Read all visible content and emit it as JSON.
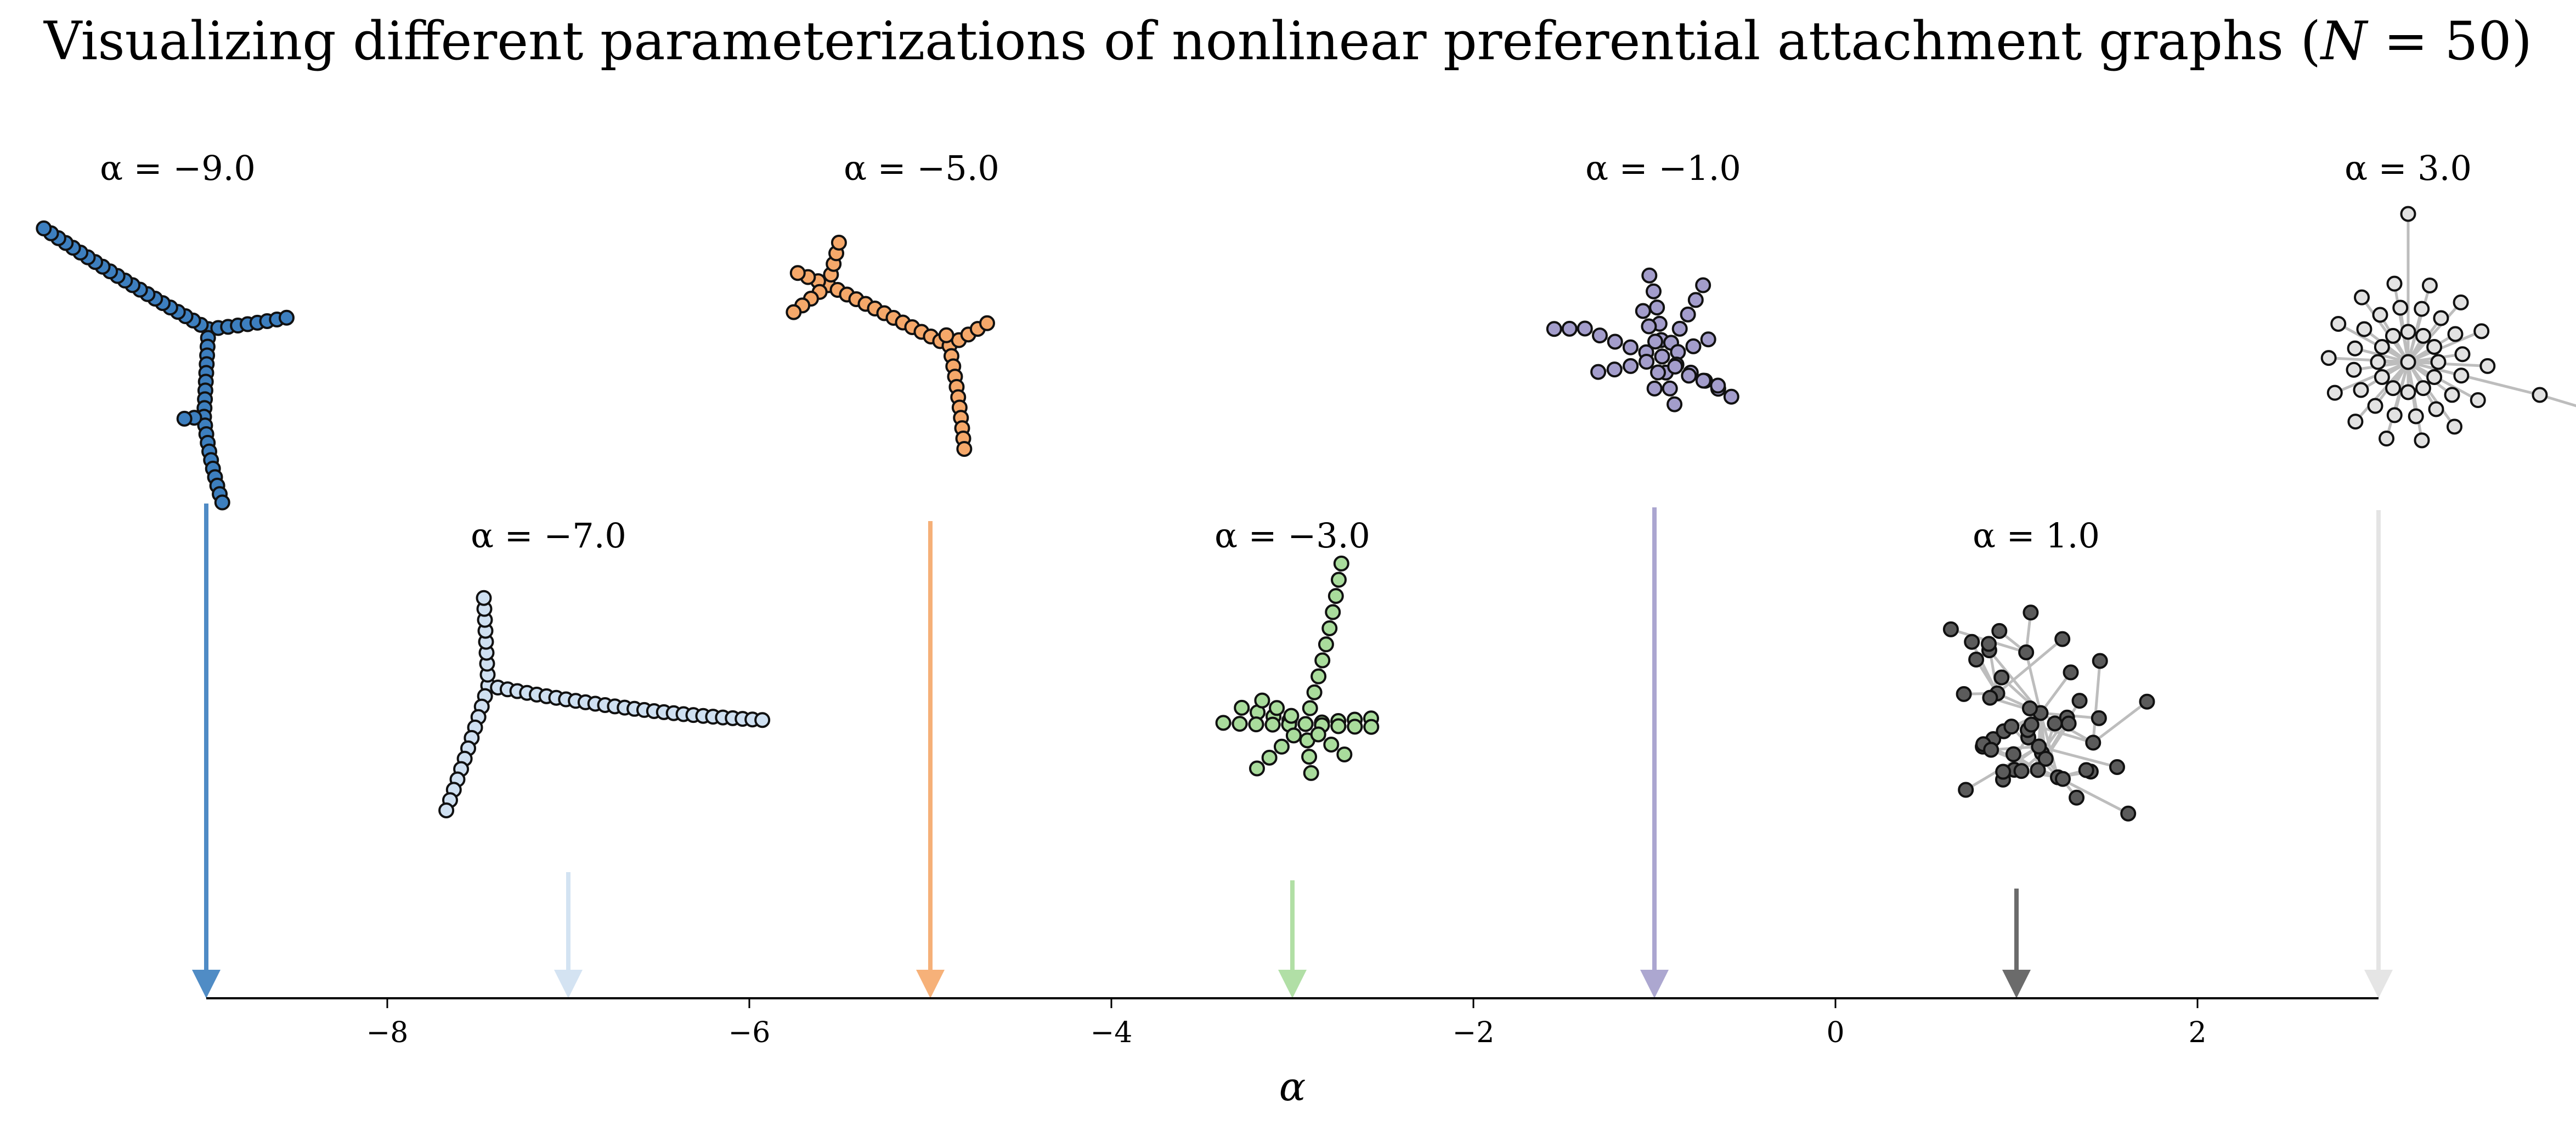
{
  "title": "Visualizing different parameterizations of nonlinear preferential attachment graphs (N = 50)",
  "title_prefix": "Visualizing different parameterizations of nonlinear preferential attachment graphs (",
  "title_var": "N",
  "title_suffix": " = 50)",
  "chart_data": {
    "type": "diagram",
    "title": "Visualizing different parameterizations of nonlinear preferential attachment graphs (N = 50)",
    "xlabel": "α",
    "xlim": [
      -9.0,
      3.0
    ],
    "ticks": [
      -8,
      -6,
      -4,
      -2,
      0,
      2
    ],
    "tick_labels": [
      "−8",
      "−6",
      "−4",
      "−2",
      "0",
      "2"
    ],
    "panels": [
      {
        "alpha": -9.0,
        "label": "α = −9.0",
        "color": "#3d7fbf",
        "structure": "three long chains",
        "row": "top"
      },
      {
        "alpha": -7.0,
        "label": "α = −7.0",
        "color": "#cfe0f1",
        "structure": "three long chains",
        "row": "bottom"
      },
      {
        "alpha": -5.0,
        "label": "α = −5.0",
        "color": "#f5a86a",
        "structure": "few long chains",
        "row": "top"
      },
      {
        "alpha": -3.0,
        "label": "α = −3.0",
        "color": "#a9dc9c",
        "structure": "many medium branches",
        "row": "bottom"
      },
      {
        "alpha": -1.0,
        "label": "α = −1.0",
        "color": "#a39dcb",
        "structure": "random tree",
        "row": "top"
      },
      {
        "alpha": 1.0,
        "label": "α = 1.0",
        "color": "#5b5b5b",
        "structure": "hub-heavy tree",
        "row": "bottom"
      },
      {
        "alpha": 3.0,
        "label": "α = 3.0",
        "color": "#e2e2e2",
        "structure": "star with single hub",
        "row": "top"
      }
    ]
  }
}
